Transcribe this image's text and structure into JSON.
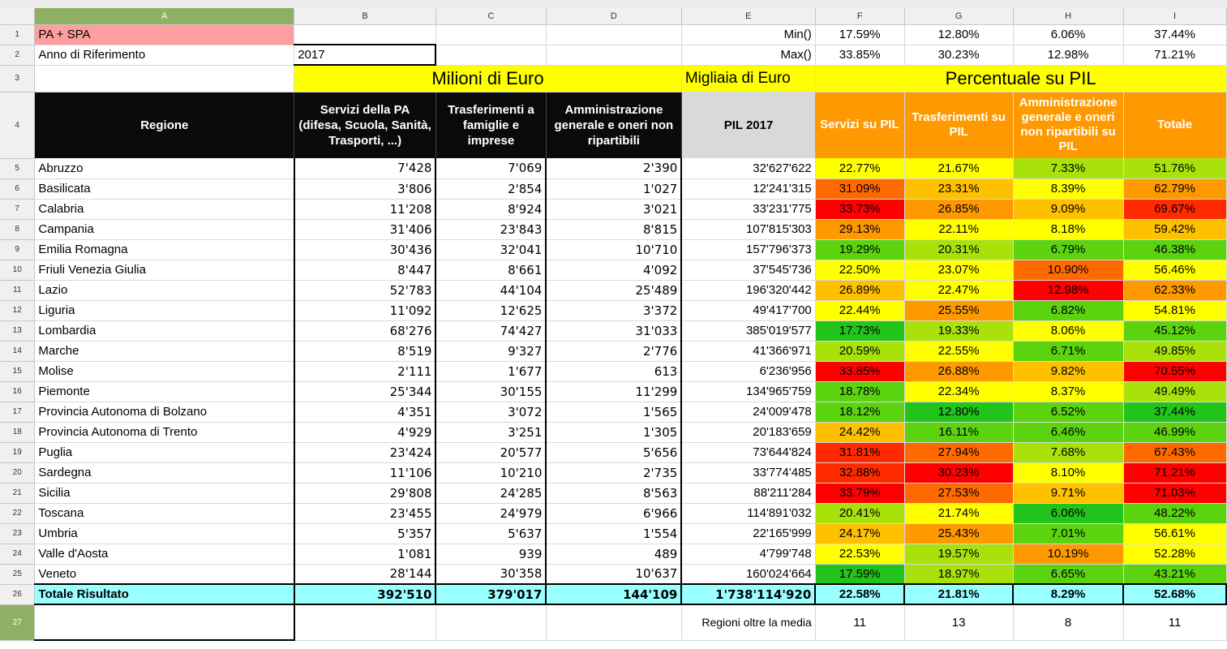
{
  "columns": [
    "A",
    "B",
    "C",
    "D",
    "E",
    "F",
    "G",
    "H",
    "I"
  ],
  "row_numbers": [
    "1",
    "2",
    "3",
    "4",
    "5",
    "6",
    "7",
    "8",
    "9",
    "10",
    "11",
    "12",
    "13",
    "14",
    "15",
    "16",
    "17",
    "18",
    "19",
    "20",
    "21",
    "22",
    "23",
    "24",
    "25",
    "26",
    "27"
  ],
  "r1": {
    "a": "PA + SPA",
    "e": "Min()",
    "f": "17.59%",
    "g": "12.80%",
    "h": "6.06%",
    "i": "37.44%"
  },
  "r2": {
    "a": "Anno di Riferimento",
    "b": "2017",
    "e": "Max()",
    "f": "33.85%",
    "g": "30.23%",
    "h": "12.98%",
    "i": "71.21%"
  },
  "r3": {
    "milioni": "Milioni di Euro",
    "migliaia": "Migliaia di Euro",
    "percentuale": "Percentuale su PIL"
  },
  "headers": {
    "regione": "Regione",
    "servizi": "Servizi della PA (difesa, Scuola, Sanità, Trasporti, ...)",
    "trasferimenti": "Trasferimenti a famiglie e imprese",
    "amministrazione": "Amministrazione generale e oneri non ripartibili",
    "pil": "PIL 2017",
    "servizi_pil": "Servizi su PIL",
    "trasf_pil": "Trasferimenti su PIL",
    "amm_pil": "Amministrazione generale e oneri non ripartibili su PIL",
    "totale": "Totale"
  },
  "colors": {
    "dkgreen": "#22c31b",
    "green": "#5bd40f",
    "lgreen": "#a9e20b",
    "yellow": "#ffff00",
    "lorange": "#ffc000",
    "orange": "#ff9900",
    "dorange": "#ff6a00",
    "red": "#ff2a00",
    "dred": "#ff0000"
  },
  "rows": [
    {
      "name": "Abruzzo",
      "b": "7'428",
      "c": "7'069",
      "d": "2'390",
      "e": "32'627'622",
      "f": "22.77%",
      "fc": "yellow",
      "g": "21.67%",
      "gc": "yellow",
      "h": "7.33%",
      "hc": "lgreen",
      "i": "51.76%",
      "ic": "lgreen"
    },
    {
      "name": "Basilicata",
      "b": "3'806",
      "c": "2'854",
      "d": "1'027",
      "e": "12'241'315",
      "f": "31.09%",
      "fc": "dorange",
      "g": "23.31%",
      "gc": "lorange",
      "h": "8.39%",
      "hc": "yellow",
      "i": "62.79%",
      "ic": "orange"
    },
    {
      "name": "Calabria",
      "b": "11'208",
      "c": "8'924",
      "d": "3'021",
      "e": "33'231'775",
      "f": "33.73%",
      "fc": "dred",
      "g": "26.85%",
      "gc": "orange",
      "h": "9.09%",
      "hc": "lorange",
      "i": "69.67%",
      "ic": "red"
    },
    {
      "name": "Campania",
      "b": "31'406",
      "c": "23'843",
      "d": "8'815",
      "e": "107'815'303",
      "f": "29.13%",
      "fc": "orange",
      "g": "22.11%",
      "gc": "yellow",
      "h": "8.18%",
      "hc": "yellow",
      "i": "59.42%",
      "ic": "lorange"
    },
    {
      "name": "Emilia Romagna",
      "b": "30'436",
      "c": "32'041",
      "d": "10'710",
      "e": "157'796'373",
      "f": "19.29%",
      "fc": "green",
      "g": "20.31%",
      "gc": "lgreen",
      "h": "6.79%",
      "hc": "green",
      "i": "46.38%",
      "ic": "green"
    },
    {
      "name": "Friuli Venezia Giulia",
      "b": "8'447",
      "c": "8'661",
      "d": "4'092",
      "e": "37'545'736",
      "f": "22.50%",
      "fc": "yellow",
      "g": "23.07%",
      "gc": "yellow",
      "h": "10.90%",
      "hc": "dorange",
      "i": "56.46%",
      "ic": "yellow"
    },
    {
      "name": "Lazio",
      "b": "52'783",
      "c": "44'104",
      "d": "25'489",
      "e": "196'320'442",
      "f": "26.89%",
      "fc": "lorange",
      "g": "22.47%",
      "gc": "yellow",
      "h": "12.98%",
      "hc": "dred",
      "i": "62.33%",
      "ic": "orange"
    },
    {
      "name": "Liguria",
      "b": "11'092",
      "c": "12'625",
      "d": "3'372",
      "e": "49'417'700",
      "f": "22.44%",
      "fc": "yellow",
      "g": "25.55%",
      "gc": "orange",
      "h": "6.82%",
      "hc": "green",
      "i": "54.81%",
      "ic": "yellow"
    },
    {
      "name": "Lombardia",
      "b": "68'276",
      "c": "74'427",
      "d": "31'033",
      "e": "385'019'577",
      "f": "17.73%",
      "fc": "dkgreen",
      "g": "19.33%",
      "gc": "lgreen",
      "h": "8.06%",
      "hc": "yellow",
      "i": "45.12%",
      "ic": "green"
    },
    {
      "name": "Marche",
      "b": "8'519",
      "c": "9'327",
      "d": "2'776",
      "e": "41'366'971",
      "f": "20.59%",
      "fc": "lgreen",
      "g": "22.55%",
      "gc": "yellow",
      "h": "6.71%",
      "hc": "green",
      "i": "49.85%",
      "ic": "lgreen"
    },
    {
      "name": "Molise",
      "b": "2'111",
      "c": "1'677",
      "d": "613",
      "e": "6'236'956",
      "f": "33.85%",
      "fc": "dred",
      "g": "26.88%",
      "gc": "orange",
      "h": "9.82%",
      "hc": "lorange",
      "i": "70.55%",
      "ic": "dred"
    },
    {
      "name": "Piemonte",
      "b": "25'344",
      "c": "30'155",
      "d": "11'299",
      "e": "134'965'759",
      "f": "18.78%",
      "fc": "green",
      "g": "22.34%",
      "gc": "yellow",
      "h": "8.37%",
      "hc": "yellow",
      "i": "49.49%",
      "ic": "lgreen"
    },
    {
      "name": "Provincia Autonoma di Bolzano",
      "b": "4'351",
      "c": "3'072",
      "d": "1'565",
      "e": "24'009'478",
      "f": "18.12%",
      "fc": "green",
      "g": "12.80%",
      "gc": "dkgreen",
      "h": "6.52%",
      "hc": "green",
      "i": "37.44%",
      "ic": "dkgreen"
    },
    {
      "name": "Provincia Autonoma di Trento",
      "b": "4'929",
      "c": "3'251",
      "d": "1'305",
      "e": "20'183'659",
      "f": "24.42%",
      "fc": "lorange",
      "g": "16.11%",
      "gc": "green",
      "h": "6.46%",
      "hc": "green",
      "i": "46.99%",
      "ic": "green"
    },
    {
      "name": "Puglia",
      "b": "23'424",
      "c": "20'577",
      "d": "5'656",
      "e": "73'644'824",
      "f": "31.81%",
      "fc": "red",
      "g": "27.94%",
      "gc": "dorange",
      "h": "7.68%",
      "hc": "lgreen",
      "i": "67.43%",
      "ic": "dorange"
    },
    {
      "name": "Sardegna",
      "b": "11'106",
      "c": "10'210",
      "d": "2'735",
      "e": "33'774'485",
      "f": "32.88%",
      "fc": "red",
      "g": "30.23%",
      "gc": "dred",
      "h": "8.10%",
      "hc": "yellow",
      "i": "71.21%",
      "ic": "dred"
    },
    {
      "name": "Sicilia",
      "b": "29'808",
      "c": "24'285",
      "d": "8'563",
      "e": "88'211'284",
      "f": "33.79%",
      "fc": "dred",
      "g": "27.53%",
      "gc": "dorange",
      "h": "9.71%",
      "hc": "lorange",
      "i": "71.03%",
      "ic": "dred"
    },
    {
      "name": "Toscana",
      "b": "23'455",
      "c": "24'979",
      "d": "6'966",
      "e": "114'891'032",
      "f": "20.41%",
      "fc": "lgreen",
      "g": "21.74%",
      "gc": "yellow",
      "h": "6.06%",
      "hc": "dkgreen",
      "i": "48.22%",
      "ic": "green"
    },
    {
      "name": "Umbria",
      "b": "5'357",
      "c": "5'637",
      "d": "1'554",
      "e": "22'165'999",
      "f": "24.17%",
      "fc": "lorange",
      "g": "25.43%",
      "gc": "orange",
      "h": "7.01%",
      "hc": "green",
      "i": "56.61%",
      "ic": "yellow"
    },
    {
      "name": "Valle d'Aosta",
      "b": "1'081",
      "c": "939",
      "d": "489",
      "e": "4'799'748",
      "f": "22.53%",
      "fc": "yellow",
      "g": "19.57%",
      "gc": "lgreen",
      "h": "10.19%",
      "hc": "orange",
      "i": "52.28%",
      "ic": "yellow"
    },
    {
      "name": "Veneto",
      "b": "28'144",
      "c": "30'358",
      "d": "10'637",
      "e": "160'024'664",
      "f": "17.59%",
      "fc": "dkgreen",
      "g": "18.97%",
      "gc": "lgreen",
      "h": "6.65%",
      "hc": "green",
      "i": "43.21%",
      "ic": "green"
    }
  ],
  "totale": {
    "name": "Totale Risultato",
    "b": "392'510",
    "c": "379'017",
    "d": "144'109",
    "e": "1'738'114'920",
    "f": "22.58%",
    "g": "21.81%",
    "h": "8.29%",
    "i": "52.68%"
  },
  "r27": {
    "label": "Regioni oltre la media",
    "f": "11",
    "g": "13",
    "h": "8",
    "i": "11"
  }
}
